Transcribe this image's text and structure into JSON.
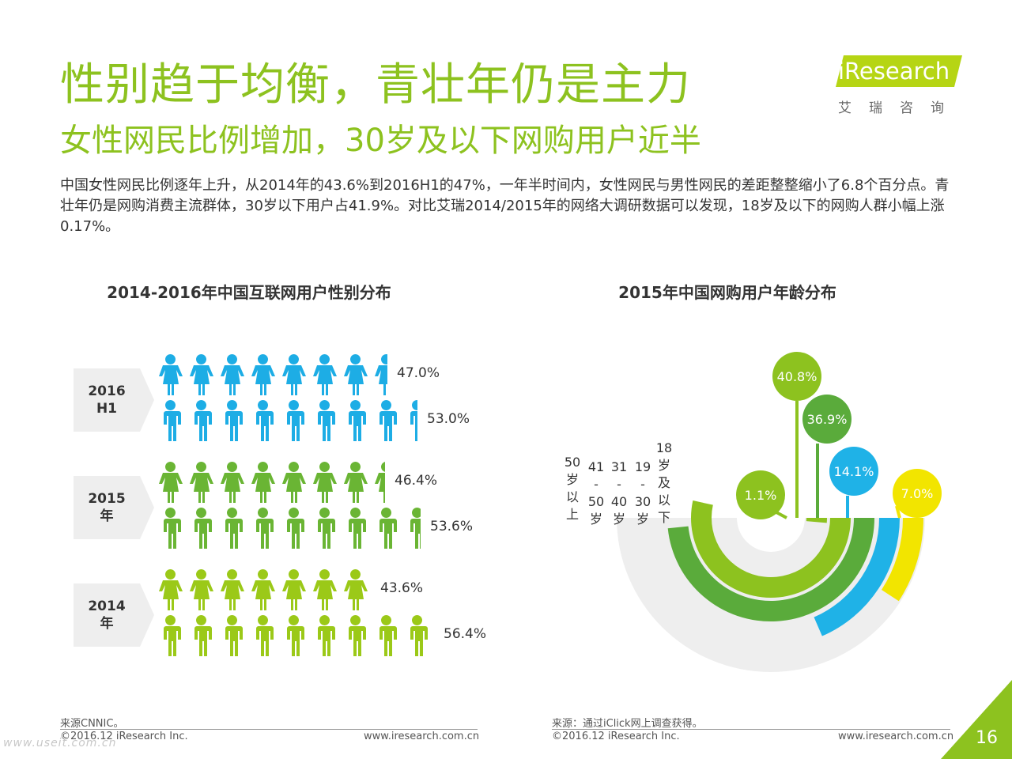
{
  "header": {
    "title": "性别趋于均衡，青壮年仍是主力",
    "subtitle": "女性网民比例增加，30岁及以下网购用户近半",
    "intro": "中国女性网民比例逐年上升，从2014年的43.6%到2016H1的47%，一年半时间内，女性网民与男性网民的差距整整缩小了6.8个百分点。青壮年仍是网购消费主流群体，30岁以下用户占41.9%。对比艾瑞2014/2015年的网络大调研数据可以发现，18岁及以下的网购人群小幅上涨0.17%。"
  },
  "logo": {
    "name": "iResearch",
    "cn": "艾瑞咨询"
  },
  "chart_data": [
    {
      "type": "bar",
      "title": "2014-2016年中国互联网用户性别分布",
      "categories": [
        "2016\nH1",
        "2015\n年",
        "2014\n年"
      ],
      "series": [
        {
          "name": "",
          "values": [
            47.0,
            46.4,
            43.6
          ]
        },
        {
          "name": "",
          "values": [
            53.0,
            53.6,
            56.4
          ]
        }
      ],
      "labels": {
        "female": [
          "47.0%",
          "46.4%",
          "43.6%"
        ],
        "male": [
          "53.0%",
          "53.6%",
          "56.4%"
        ]
      },
      "colors": [
        "#1dade5",
        "#6ab534",
        "#9bc918"
      ],
      "unit": "%"
    },
    {
      "type": "bar",
      "title": "2015年中国网购用户年龄分布",
      "categories": [
        "18岁及以下",
        "19-30岁",
        "31-40岁",
        "41-50岁",
        "50岁以上"
      ],
      "values": [
        1.1,
        40.8,
        36.9,
        14.1,
        7.0
      ],
      "labels": [
        "1.1%",
        "40.8%",
        "36.9%",
        "14.1%",
        "7.0%"
      ],
      "axis_labels": [
        "18\n岁\n及\n以\n下",
        "19\n-\n30\n岁",
        "31\n-\n40\n岁",
        "41\n-\n50\n岁",
        "50\n岁\n以\n上"
      ],
      "colors": [
        "#8dc21f",
        "#8dc21f",
        "#5aab3b",
        "#1fb2e7",
        "#f2e500"
      ],
      "ylim": [
        0,
        50
      ]
    }
  ],
  "footer": {
    "left_source": "来源CNNIC。",
    "right_source": "来源：通过iClick网上调查获得。",
    "copyright_left": "©2016.12 iResearch Inc.",
    "url_left": "www.iresearch.com.cn",
    "copyright_right": "©2016.12 iResearch Inc.",
    "url_right": "www.iresearch.com.cn",
    "page_number": "16",
    "watermark": "www.useit.com.cn"
  }
}
